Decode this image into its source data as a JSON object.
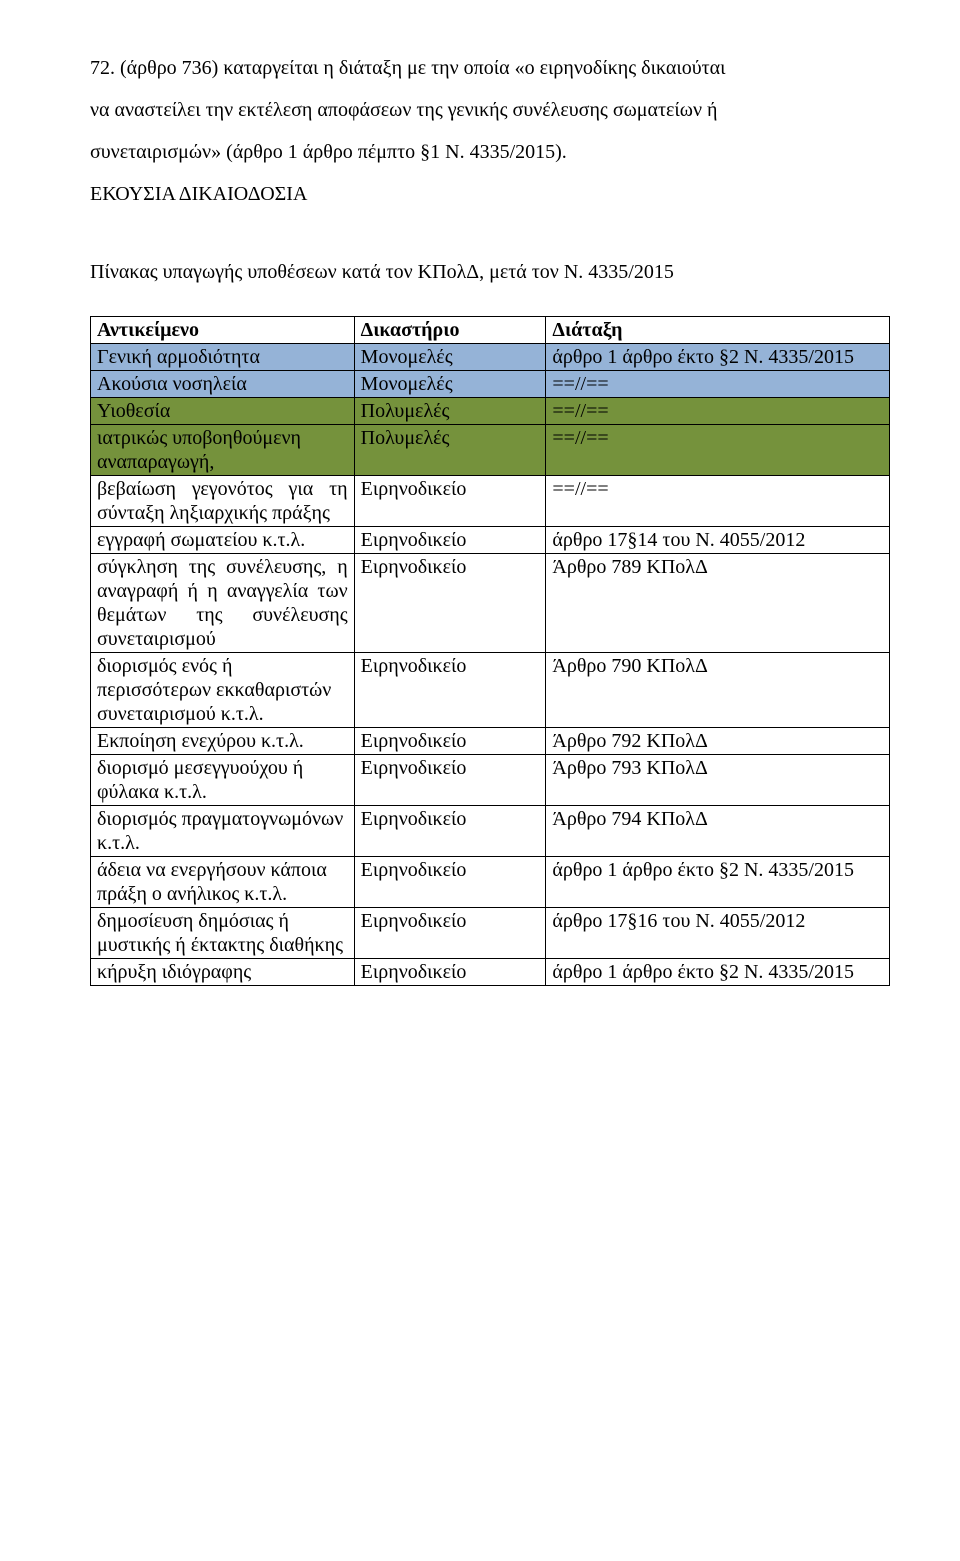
{
  "paragraphs": [
    "  72. (άρθρο 736) καταργείται η διάταξη με την οποία  «ο ειρηνοδίκης δικαιούται",
    "να αναστείλει την εκτέλεση αποφάσεων της γενικής συνέλευσης σωματείων ή",
    "συνεταιρισμών» (άρθρο 1 άρθρο πέμπτο §1  Ν. 4335/2015)."
  ],
  "heading": "ΕΚΟΥΣΙΑ ΔΙΚΑΙΟΔΟΣΙΑ",
  "subtitle": "Πίνακας υπαγωγής υποθέσεων κατά τον ΚΠολΔ, μετά τον Ν. 4335/2015",
  "table": {
    "columns": [
      "Αντικείμενο",
      "Δικαστήριο",
      "Διάταξη"
    ],
    "rows": [
      {
        "cells": [
          "Γενική αρμοδιότητα",
          "Μονομελές",
          "άρθρο 1 άρθρο έκτο §2  Ν. 4335/2015"
        ],
        "bg": "#95b3d7"
      },
      {
        "cells": [
          "Ακούσια νοσηλεία",
          "Μονομελές",
          "==//=="
        ],
        "bg": "#95b3d7"
      },
      {
        "cells": [
          "Υιοθεσία",
          "Πολυμελές",
          "==//=="
        ],
        "bg": "#75923c"
      },
      {
        "cells": [
          "ιατρικώς υποβοηθούμενη αναπαραγωγή,",
          "Πολυμελές",
          "==//=="
        ],
        "bg": "#75923c"
      },
      {
        "cells": [
          "βεβαίωση γεγονότος για τη σύνταξη ληξιαρχικής πράξης",
          "Ειρηνοδικείο",
          "==//=="
        ],
        "bg": "#ffffff",
        "justify0": true
      },
      {
        "cells": [
          "εγγραφή σωματείου κ.τ.λ.",
          "Ειρηνοδικείο",
          "άρθρο 17§14 του Ν. 4055/2012"
        ],
        "bg": "#ffffff",
        "justify0": true
      },
      {
        "cells": [
          "σύγκληση της συνέλευσης, η αναγραφή ή η αναγγελία των θεμάτων της συνέλευσης συνεταιρισμού",
          "Ειρηνοδικείο",
          "Άρθρο 789 ΚΠολΔ"
        ],
        "bg": "#ffffff",
        "justify0": true
      },
      {
        "cells": [
          "διορισμός ενός ή περισσότερων εκκαθαριστών συνεταιρισμού κ.τ.λ.",
          "Ειρηνοδικείο",
          "Άρθρο 790 ΚΠολΔ"
        ],
        "bg": "#ffffff"
      },
      {
        "cells": [
          "Εκποίηση ενεχύρου κ.τ.λ.",
          "Ειρηνοδικείο",
          "Άρθρο 792 ΚΠολΔ"
        ],
        "bg": "#ffffff"
      },
      {
        "cells": [
          "διορισμό μεσεγγυούχου ή φύλακα κ.τ.λ.",
          "Ειρηνοδικείο",
          "Άρθρο 793 ΚΠολΔ"
        ],
        "bg": "#ffffff"
      },
      {
        "cells": [
          "διορισμός πραγματογνωμόνων κ.τ.λ.",
          "Ειρηνοδικείο",
          "Άρθρο 794 ΚΠολΔ"
        ],
        "bg": "#ffffff"
      },
      {
        "cells": [
          "άδεια να ενεργήσουν κάποια πράξη ο ανήλικος κ.τ.λ.",
          "Ειρηνοδικείο",
          "άρθρο 1 άρθρο έκτο §2  Ν. 4335/2015"
        ],
        "bg": "#ffffff"
      },
      {
        "cells": [
          "δημοσίευση δημόσιας ή μυστικής ή έκτακτης διαθήκης",
          "Ειρηνοδικείο",
          "άρθρο 17§16 του Ν. 4055/2012"
        ],
        "bg": "#ffffff"
      },
      {
        "cells": [
          "κήρυξη ιδιόγραφης",
          "Ειρηνοδικείο",
          "άρθρο 1 άρθρο έκτο §2  Ν. 4335/2015"
        ],
        "bg": "#ffffff"
      }
    ]
  }
}
